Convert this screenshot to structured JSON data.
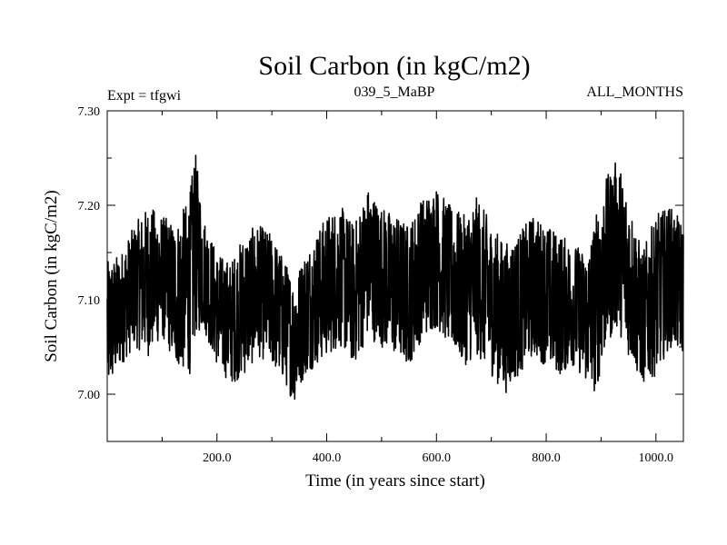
{
  "chart_data": {
    "type": "line",
    "title": "Soil Carbon (in kgC/m2)",
    "experiment": "Expt = tfgwi",
    "subtitle": "039_5_MaBP",
    "period": "ALL_MONTHS",
    "xlabel": "Time (in years since start)",
    "ylabel": "Soil Carbon (in kgC/m2)",
    "xlim": [
      0,
      1050
    ],
    "ylim": [
      6.95,
      7.3
    ],
    "xticks": [
      {
        "value": 200,
        "label": "200.0"
      },
      {
        "value": 400,
        "label": "400.0"
      },
      {
        "value": 600,
        "label": "600.0"
      },
      {
        "value": 800,
        "label": "800.0"
      },
      {
        "value": 1000,
        "label": "1000.0"
      }
    ],
    "yticks": [
      {
        "value": 7.0,
        "label": "7.00"
      },
      {
        "value": 7.1,
        "label": "7.10"
      },
      {
        "value": 7.2,
        "label": "7.20"
      },
      {
        "value": 7.3,
        "label": "7.30"
      }
    ],
    "line_color": "#000000",
    "series": [
      {
        "name": "Soil Carbon",
        "x": [
          0,
          25,
          50,
          75,
          100,
          125,
          150,
          160,
          175,
          200,
          225,
          250,
          275,
          300,
          325,
          340,
          360,
          400,
          425,
          450,
          475,
          500,
          525,
          550,
          575,
          600,
          625,
          650,
          675,
          700,
          725,
          750,
          775,
          800,
          825,
          850,
          875,
          890,
          910,
          930,
          950,
          975,
          1000,
          1025,
          1050
        ],
        "upper": [
          7.14,
          7.15,
          7.18,
          7.2,
          7.19,
          7.18,
          7.21,
          7.26,
          7.19,
          7.15,
          7.14,
          7.17,
          7.18,
          7.17,
          7.14,
          7.12,
          7.15,
          7.19,
          7.2,
          7.18,
          7.22,
          7.2,
          7.19,
          7.18,
          7.21,
          7.22,
          7.2,
          7.19,
          7.21,
          7.18,
          7.16,
          7.17,
          7.19,
          7.18,
          7.17,
          7.16,
          7.15,
          7.19,
          7.23,
          7.25,
          7.21,
          7.15,
          7.19,
          7.2,
          7.18
        ],
        "lower": [
          7.0,
          7.03,
          7.05,
          7.04,
          7.06,
          7.03,
          7.02,
          7.06,
          7.07,
          7.03,
          7.01,
          7.02,
          7.04,
          7.03,
          7.01,
          6.99,
          7.02,
          7.04,
          7.05,
          7.03,
          7.06,
          7.05,
          7.04,
          7.03,
          7.06,
          7.07,
          7.05,
          7.03,
          7.04,
          7.02,
          7.0,
          7.02,
          7.04,
          7.03,
          7.02,
          7.03,
          7.01,
          7.0,
          7.05,
          7.07,
          7.04,
          7.01,
          7.02,
          7.05,
          7.04
        ]
      }
    ]
  }
}
